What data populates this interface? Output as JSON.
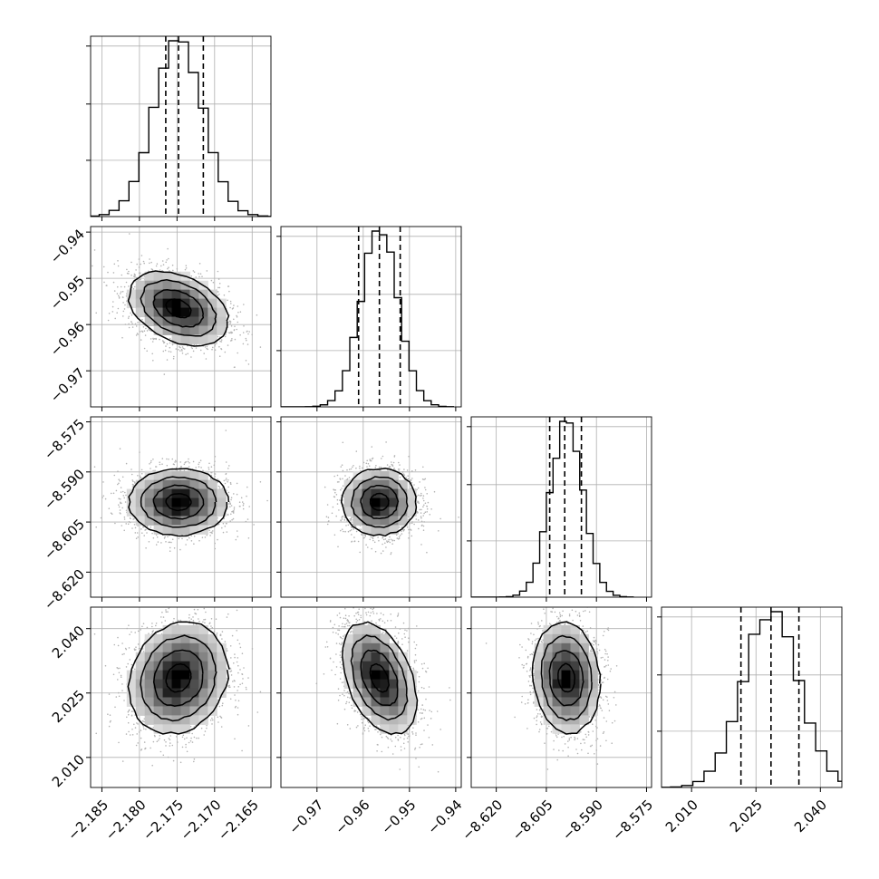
{
  "chart_data": {
    "type": "corner",
    "grid": true,
    "colors": {
      "line": "#000000",
      "grid": "#b0b0b0",
      "scatter": "#b3b3b3",
      "density_dark": "#000000"
    },
    "params": [
      {
        "mean": -2.1748,
        "sigma": 0.0033,
        "range": [
          -2.1865,
          -2.1625
        ],
        "ticks": [
          -2.185,
          -2.18,
          -2.175,
          -2.17,
          -2.165
        ],
        "tick_labels": [
          "−2.185",
          "−2.180",
          "−2.175",
          "−2.170",
          "−2.165"
        ],
        "quantiles": [
          -2.1765,
          -2.1748,
          -2.1715
        ]
      },
      {
        "mean": -0.9565,
        "sigma": 0.004,
        "range": [
          -0.9778,
          -0.9388
        ],
        "ticks": [
          -0.97,
          -0.96,
          -0.95,
          -0.94
        ],
        "tick_labels": [
          "−0.97",
          "−0.96",
          "−0.95",
          "−0.94"
        ],
        "quantiles": [
          -0.961,
          -0.9565,
          -0.952
        ]
      },
      {
        "mean": -8.599,
        "sigma": 0.005,
        "range": [
          -8.6275,
          -8.5735
        ],
        "ticks": [
          -8.62,
          -8.605,
          -8.59,
          -8.575
        ],
        "tick_labels": [
          "−8.620",
          "−8.605",
          "−8.590",
          "−8.575"
        ],
        "quantiles": [
          -8.604,
          -8.5995,
          -8.5945
        ]
      },
      {
        "mean": 2.0285,
        "sigma": 0.0065,
        "range": [
          2.003,
          2.045
        ],
        "ticks": [
          2.01,
          2.025,
          2.04
        ],
        "tick_labels": [
          "2.010",
          "2.025",
          "2.040"
        ],
        "quantiles": [
          2.0215,
          2.0285,
          2.035
        ]
      }
    ],
    "correlations": [
      {
        "i": 1,
        "j": 0,
        "rho": -0.35
      },
      {
        "i": 2,
        "j": 0,
        "rho": 0.0
      },
      {
        "i": 2,
        "j": 1,
        "rho": 0.0
      },
      {
        "i": 3,
        "j": 0,
        "rho": 0.15
      },
      {
        "i": 3,
        "j": 1,
        "rho": -0.4
      },
      {
        "i": 3,
        "j": 2,
        "rho": -0.1
      }
    ]
  }
}
